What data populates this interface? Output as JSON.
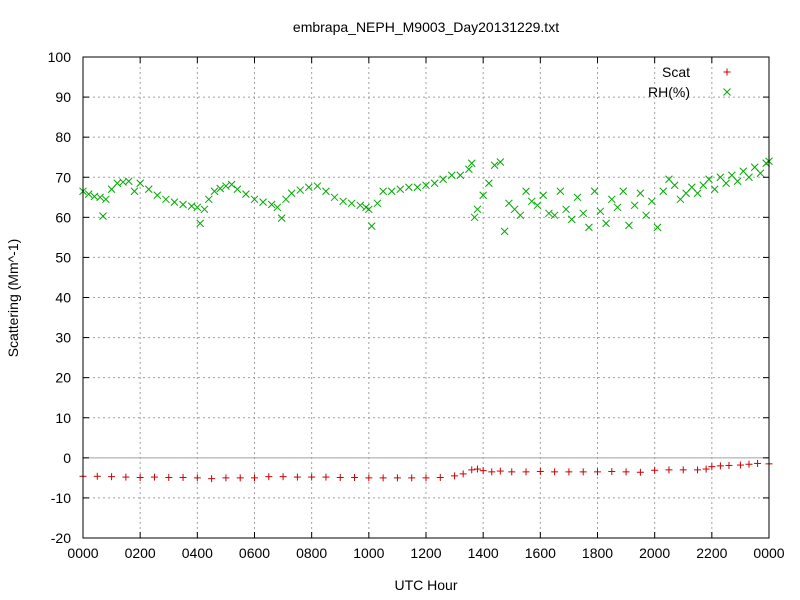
{
  "chart_data": {
    "type": "scatter",
    "title": "embrapa_NEPH_M9003_Day20131229.txt",
    "xlabel": "UTC Hour",
    "ylabel": "Scattering (Mm^-1)",
    "xlim": [
      0,
      24
    ],
    "ylim": [
      -20,
      100
    ],
    "grid": true,
    "legend_position": "top-right",
    "x_ticks": [
      0,
      2,
      4,
      6,
      8,
      10,
      12,
      14,
      16,
      18,
      20,
      22,
      24
    ],
    "x_tick_labels": [
      "0000",
      "0200",
      "0400",
      "0600",
      "0800",
      "1000",
      "1200",
      "1400",
      "1600",
      "1800",
      "2000",
      "2200",
      "0000"
    ],
    "y_ticks": [
      -20,
      -10,
      0,
      10,
      20,
      30,
      40,
      50,
      60,
      70,
      80,
      90,
      100
    ],
    "y_tick_labels": [
      "-20",
      "-10",
      "0",
      "10",
      "20",
      "30",
      "40",
      "50",
      "60",
      "70",
      "80",
      "90",
      "100"
    ],
    "series": [
      {
        "name": "Scat",
        "color": "#cc0000",
        "marker": "plus",
        "points": [
          [
            0.0,
            -4.6
          ],
          [
            0.5,
            -4.6
          ],
          [
            1.0,
            -4.7
          ],
          [
            1.5,
            -4.8
          ],
          [
            2.0,
            -4.9
          ],
          [
            2.5,
            -4.8
          ],
          [
            3.0,
            -4.9
          ],
          [
            3.5,
            -4.9
          ],
          [
            4.0,
            -5.0
          ],
          [
            4.5,
            -5.2
          ],
          [
            5.0,
            -5.0
          ],
          [
            5.5,
            -5.0
          ],
          [
            6.0,
            -5.0
          ],
          [
            6.5,
            -4.7
          ],
          [
            7.0,
            -4.7
          ],
          [
            7.5,
            -4.8
          ],
          [
            8.0,
            -4.8
          ],
          [
            8.5,
            -4.8
          ],
          [
            9.0,
            -4.9
          ],
          [
            9.5,
            -4.9
          ],
          [
            10.0,
            -5.0
          ],
          [
            10.5,
            -5.0
          ],
          [
            11.0,
            -5.0
          ],
          [
            11.5,
            -5.0
          ],
          [
            12.0,
            -5.0
          ],
          [
            12.5,
            -4.9
          ],
          [
            13.0,
            -4.5
          ],
          [
            13.3,
            -4.0
          ],
          [
            13.6,
            -3.0
          ],
          [
            13.8,
            -2.8
          ],
          [
            14.0,
            -3.2
          ],
          [
            14.3,
            -3.5
          ],
          [
            14.6,
            -3.3
          ],
          [
            15.0,
            -3.5
          ],
          [
            15.5,
            -3.5
          ],
          [
            16.0,
            -3.4
          ],
          [
            16.5,
            -3.5
          ],
          [
            17.0,
            -3.5
          ],
          [
            17.5,
            -3.5
          ],
          [
            18.0,
            -3.5
          ],
          [
            18.5,
            -3.4
          ],
          [
            19.0,
            -3.5
          ],
          [
            19.5,
            -3.6
          ],
          [
            20.0,
            -3.1
          ],
          [
            20.5,
            -3.0
          ],
          [
            21.0,
            -3.0
          ],
          [
            21.5,
            -3.0
          ],
          [
            21.8,
            -2.8
          ],
          [
            22.0,
            -2.2
          ],
          [
            22.3,
            -2.0
          ],
          [
            22.6,
            -1.9
          ],
          [
            23.0,
            -1.8
          ],
          [
            23.3,
            -1.6
          ],
          [
            23.6,
            -1.4
          ],
          [
            24.0,
            -1.5
          ]
        ]
      },
      {
        "name": "RH(%)",
        "color": "#00aa00",
        "marker": "cross",
        "points": [
          [
            0.0,
            66.5
          ],
          [
            0.2,
            65.8
          ],
          [
            0.4,
            65.2
          ],
          [
            0.6,
            65.0
          ],
          [
            0.7,
            60.3
          ],
          [
            0.8,
            64.5
          ],
          [
            1.0,
            67.0
          ],
          [
            1.2,
            68.5
          ],
          [
            1.4,
            68.8
          ],
          [
            1.6,
            69.0
          ],
          [
            1.8,
            66.5
          ],
          [
            2.0,
            68.5
          ],
          [
            2.3,
            67.0
          ],
          [
            2.6,
            65.5
          ],
          [
            2.9,
            64.5
          ],
          [
            3.2,
            63.8
          ],
          [
            3.5,
            63.2
          ],
          [
            3.8,
            62.8
          ],
          [
            4.0,
            62.5
          ],
          [
            4.1,
            58.5
          ],
          [
            4.25,
            62.0
          ],
          [
            4.4,
            64.5
          ],
          [
            4.6,
            66.5
          ],
          [
            4.8,
            67.2
          ],
          [
            5.0,
            67.8
          ],
          [
            5.2,
            68.2
          ],
          [
            5.4,
            67.0
          ],
          [
            5.7,
            65.8
          ],
          [
            6.0,
            64.5
          ],
          [
            6.3,
            63.8
          ],
          [
            6.6,
            63.2
          ],
          [
            6.8,
            62.5
          ],
          [
            6.95,
            59.8
          ],
          [
            7.1,
            64.5
          ],
          [
            7.3,
            66.0
          ],
          [
            7.6,
            66.8
          ],
          [
            7.9,
            67.5
          ],
          [
            8.2,
            67.8
          ],
          [
            8.5,
            66.5
          ],
          [
            8.8,
            65.0
          ],
          [
            9.1,
            64.0
          ],
          [
            9.4,
            63.5
          ],
          [
            9.7,
            63.0
          ],
          [
            9.9,
            62.5
          ],
          [
            10.0,
            62.0
          ],
          [
            10.1,
            57.8
          ],
          [
            10.3,
            63.5
          ],
          [
            10.5,
            66.5
          ],
          [
            10.8,
            66.5
          ],
          [
            11.1,
            67.0
          ],
          [
            11.4,
            67.5
          ],
          [
            11.7,
            67.5
          ],
          [
            12.0,
            68.0
          ],
          [
            12.3,
            68.5
          ],
          [
            12.6,
            69.5
          ],
          [
            12.9,
            70.5
          ],
          [
            13.2,
            70.5
          ],
          [
            13.5,
            72.0
          ],
          [
            13.6,
            73.5
          ],
          [
            13.7,
            60.0
          ],
          [
            13.8,
            62.0
          ],
          [
            14.0,
            65.5
          ],
          [
            14.2,
            68.5
          ],
          [
            14.4,
            73.0
          ],
          [
            14.6,
            73.8
          ],
          [
            14.75,
            56.5
          ],
          [
            14.9,
            63.5
          ],
          [
            15.1,
            62.0
          ],
          [
            15.3,
            60.5
          ],
          [
            15.5,
            66.5
          ],
          [
            15.7,
            64.0
          ],
          [
            15.9,
            63.0
          ],
          [
            16.1,
            65.5
          ],
          [
            16.3,
            61.0
          ],
          [
            16.5,
            60.5
          ],
          [
            16.7,
            66.5
          ],
          [
            16.9,
            62.0
          ],
          [
            17.1,
            59.5
          ],
          [
            17.3,
            65.0
          ],
          [
            17.5,
            61.0
          ],
          [
            17.7,
            57.5
          ],
          [
            17.9,
            66.5
          ],
          [
            18.1,
            61.5
          ],
          [
            18.3,
            58.5
          ],
          [
            18.5,
            64.5
          ],
          [
            18.7,
            62.5
          ],
          [
            18.9,
            66.5
          ],
          [
            19.1,
            58.0
          ],
          [
            19.3,
            63.0
          ],
          [
            19.5,
            66.0
          ],
          [
            19.7,
            60.5
          ],
          [
            19.9,
            64.0
          ],
          [
            20.1,
            57.5
          ],
          [
            20.3,
            66.5
          ],
          [
            20.5,
            69.5
          ],
          [
            20.7,
            68.0
          ],
          [
            20.9,
            64.5
          ],
          [
            21.1,
            66.0
          ],
          [
            21.3,
            67.5
          ],
          [
            21.5,
            66.0
          ],
          [
            21.7,
            68.0
          ],
          [
            21.9,
            69.5
          ],
          [
            22.1,
            67.0
          ],
          [
            22.3,
            70.0
          ],
          [
            22.5,
            68.5
          ],
          [
            22.7,
            70.5
          ],
          [
            22.9,
            69.0
          ],
          [
            23.1,
            71.5
          ],
          [
            23.3,
            70.0
          ],
          [
            23.5,
            72.5
          ],
          [
            23.7,
            71.0
          ],
          [
            23.9,
            73.5
          ],
          [
            24.0,
            74.0
          ]
        ]
      }
    ]
  }
}
